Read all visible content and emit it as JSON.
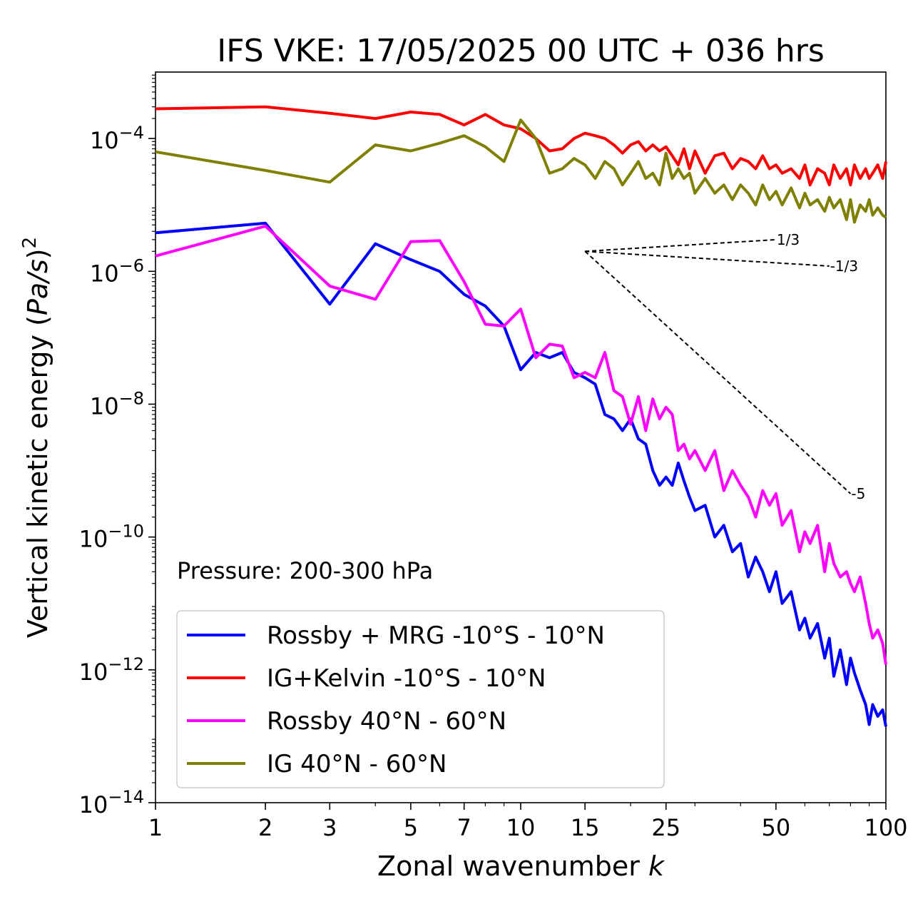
{
  "chart_data": {
    "type": "line",
    "title": "IFS VKE: 17/05/2025 00 UTC + 036 hrs",
    "xlabel_text": "Zonal wavenumber ",
    "xlabel_var": "k",
    "ylabel_text": "Vertical kinetic energy (",
    "ylabel_var": "Pa/s",
    "ylabel_close": ")",
    "ylabel_exp": "2",
    "xscale": "log",
    "yscale": "log",
    "xlim": [
      1,
      100
    ],
    "ylim": [
      1e-14,
      0.001
    ],
    "xticks": [
      {
        "value": 1,
        "label": "1"
      },
      {
        "value": 2,
        "label": "2"
      },
      {
        "value": 3,
        "label": "3"
      },
      {
        "value": 5,
        "label": "5"
      },
      {
        "value": 7,
        "label": "7"
      },
      {
        "value": 10,
        "label": "10"
      },
      {
        "value": 15,
        "label": "15"
      },
      {
        "value": 25,
        "label": "25"
      },
      {
        "value": 50,
        "label": "50"
      },
      {
        "value": 100,
        "label": "100"
      }
    ],
    "yticks": [
      {
        "value": 0.0001,
        "base": "10",
        "exp": "−4"
      },
      {
        "value": 1e-06,
        "base": "10",
        "exp": "−6"
      },
      {
        "value": 1e-08,
        "base": "10",
        "exp": "−8"
      },
      {
        "value": 1e-10,
        "base": "10",
        "exp": "−10"
      },
      {
        "value": 1e-12,
        "base": "10",
        "exp": "−12"
      },
      {
        "value": 1e-14,
        "base": "10",
        "exp": "−14"
      }
    ],
    "annotation": "Pressure: 200-300 hPa",
    "legend_position": "lower-left",
    "series": [
      {
        "name": "Rossby + MRG -10°S - 10°N",
        "color": "#0000ff",
        "x": [
          1,
          2,
          3,
          4,
          5,
          6,
          7,
          8,
          9,
          10,
          11,
          12,
          13,
          14,
          15,
          16,
          17,
          18,
          19,
          20,
          21,
          22,
          23,
          24,
          25,
          26,
          27,
          28,
          29,
          30,
          32,
          34,
          36,
          38,
          40,
          42,
          44,
          46,
          48,
          50,
          52,
          55,
          58,
          60,
          62,
          65,
          68,
          70,
          72,
          75,
          78,
          80,
          82,
          85,
          88,
          90,
          92,
          95,
          98,
          100
        ],
        "y": [
          3.8e-06,
          5.3e-06,
          3.2e-07,
          2.6e-06,
          1.5e-06,
          1e-06,
          4.5e-07,
          3e-07,
          1.5e-07,
          3.3e-08,
          6e-08,
          5e-08,
          6e-08,
          3e-08,
          2.5e-08,
          2e-08,
          7e-09,
          6e-09,
          4e-09,
          6e-09,
          3e-09,
          2.5e-09,
          1e-09,
          6e-10,
          8e-10,
          6e-10,
          1.3e-09,
          7e-10,
          4e-10,
          2.5e-10,
          3e-10,
          1e-10,
          1.5e-10,
          6e-11,
          8e-11,
          2.5e-11,
          5e-11,
          3e-11,
          1.5e-11,
          3e-11,
          1e-11,
          1.5e-11,
          4e-12,
          6e-12,
          3e-12,
          5e-12,
          1.5e-12,
          3e-12,
          8e-13,
          2e-12,
          6e-13,
          1.5e-12,
          9e-13,
          5e-13,
          3e-13,
          1.5e-13,
          3e-13,
          2e-13,
          2.5e-13,
          1.4e-13
        ]
      },
      {
        "name": "IG+Kelvin -10°S - 10°N",
        "color": "#ff0000",
        "x": [
          1,
          2,
          3,
          4,
          5,
          6,
          7,
          8,
          9,
          10,
          11,
          12,
          13,
          14,
          15,
          16,
          17,
          18,
          19,
          20,
          21,
          22,
          23,
          24,
          25,
          26,
          27,
          28,
          29,
          30,
          32,
          34,
          36,
          38,
          40,
          42,
          44,
          46,
          48,
          50,
          52,
          55,
          58,
          60,
          62,
          65,
          68,
          70,
          72,
          75,
          78,
          80,
          82,
          85,
          88,
          90,
          92,
          95,
          98,
          100
        ],
        "y": [
          0.00028,
          0.0003,
          0.00024,
          0.0002,
          0.00025,
          0.00023,
          0.00016,
          0.00023,
          0.00016,
          0.00014,
          0.0001,
          6.5e-05,
          7e-05,
          0.0001,
          0.00012,
          0.00011,
          0.0001,
          8e-05,
          6e-05,
          8e-05,
          9e-05,
          6.5e-05,
          8e-05,
          6.5e-05,
          7.5e-05,
          5.5e-05,
          4e-05,
          7e-05,
          3.5e-05,
          6.5e-05,
          3e-05,
          5.5e-05,
          6e-05,
          3.5e-05,
          5e-05,
          4.5e-05,
          3.5e-05,
          5.5e-05,
          3.5e-05,
          4e-05,
          3e-05,
          3.5e-05,
          2.5e-05,
          4e-05,
          2e-05,
          3.5e-05,
          3e-05,
          2e-05,
          4e-05,
          2.5e-05,
          3.5e-05,
          2e-05,
          4e-05,
          2.5e-05,
          3.5e-05,
          2.5e-05,
          3e-05,
          4e-05,
          2.5e-05,
          4.5e-05
        ]
      },
      {
        "name": "Rossby 40°N - 60°N",
        "color": "#ff00ff",
        "x": [
          1,
          2,
          3,
          4,
          5,
          6,
          7,
          8,
          9,
          10,
          11,
          12,
          13,
          14,
          15,
          16,
          17,
          18,
          19,
          20,
          21,
          22,
          23,
          24,
          25,
          26,
          27,
          28,
          29,
          30,
          32,
          34,
          36,
          38,
          40,
          42,
          44,
          46,
          48,
          50,
          52,
          55,
          58,
          60,
          62,
          65,
          68,
          70,
          72,
          75,
          78,
          80,
          82,
          85,
          88,
          90,
          92,
          95,
          98,
          100
        ],
        "y": [
          1.7e-06,
          4.8e-06,
          6e-07,
          3.8e-07,
          2.8e-06,
          2.9e-06,
          7e-07,
          1.6e-07,
          1.5e-07,
          2.7e-07,
          5e-08,
          8e-08,
          7.5e-08,
          2.5e-08,
          3e-08,
          2.5e-08,
          6e-08,
          1.6e-08,
          1.3e-08,
          5e-09,
          1.3e-08,
          4e-09,
          1.2e-08,
          6e-09,
          9e-09,
          7e-09,
          2e-09,
          2.5e-09,
          1.5e-09,
          2e-09,
          1e-09,
          2e-09,
          5e-10,
          1e-09,
          6e-10,
          4e-10,
          2e-10,
          5e-10,
          3e-10,
          4.5e-10,
          1.5e-10,
          2.5e-10,
          6e-11,
          1.2e-10,
          8e-11,
          1.5e-10,
          3e-11,
          8e-11,
          4e-11,
          2.5e-11,
          3e-11,
          2e-11,
          1.5e-11,
          2.5e-11,
          1e-11,
          5e-12,
          3e-12,
          4e-12,
          2.5e-12,
          1.2e-12
        ]
      },
      {
        "name": "IG 40°N - 60°N",
        "color": "#808000",
        "x": [
          1,
          2,
          3,
          4,
          5,
          6,
          7,
          8,
          9,
          10,
          11,
          12,
          13,
          14,
          15,
          16,
          17,
          18,
          19,
          20,
          21,
          22,
          23,
          24,
          25,
          26,
          27,
          28,
          29,
          30,
          32,
          34,
          36,
          38,
          40,
          42,
          44,
          46,
          48,
          50,
          52,
          55,
          58,
          60,
          62,
          65,
          68,
          70,
          72,
          75,
          78,
          80,
          82,
          85,
          88,
          90,
          92,
          95,
          98,
          100
        ],
        "y": [
          6.3e-05,
          3.3e-05,
          2.2e-05,
          8e-05,
          6.5e-05,
          8.5e-05,
          0.00011,
          7.5e-05,
          4.5e-05,
          0.00019,
          0.0001,
          3e-05,
          3.5e-05,
          5e-05,
          4e-05,
          2.5e-05,
          4.5e-05,
          3.5e-05,
          2e-05,
          3e-05,
          4.5e-05,
          2.5e-05,
          3e-05,
          2e-05,
          6e-05,
          2.5e-05,
          3.5e-05,
          2.5e-05,
          3e-05,
          1.5e-05,
          2.5e-05,
          1.5e-05,
          2e-05,
          1.2e-05,
          2e-05,
          1.5e-05,
          1e-05,
          2e-05,
          1.2e-05,
          1.6e-05,
          1e-05,
          1.8e-05,
          9e-06,
          1.5e-05,
          1e-05,
          1.2e-05,
          8e-06,
          1.3e-05,
          9e-06,
          1.2e-05,
          6e-06,
          1.2e-05,
          5.5e-06,
          1e-05,
          8e-06,
          1.2e-05,
          7e-06,
          9e-06,
          7e-06,
          6.5e-06
        ]
      }
    ],
    "reference_slopes": [
      {
        "label": "1/3",
        "x": [
          15,
          50
        ],
        "y": [
          2e-06,
          3e-06
        ]
      },
      {
        "label": "-1/3",
        "x": [
          15,
          70
        ],
        "y": [
          2e-06,
          1.2e-06
        ]
      },
      {
        "label": "-5",
        "x": [
          15,
          80
        ],
        "y": [
          2e-06,
          4.5e-10
        ]
      }
    ],
    "legend_frame_color": "#cccccc"
  }
}
